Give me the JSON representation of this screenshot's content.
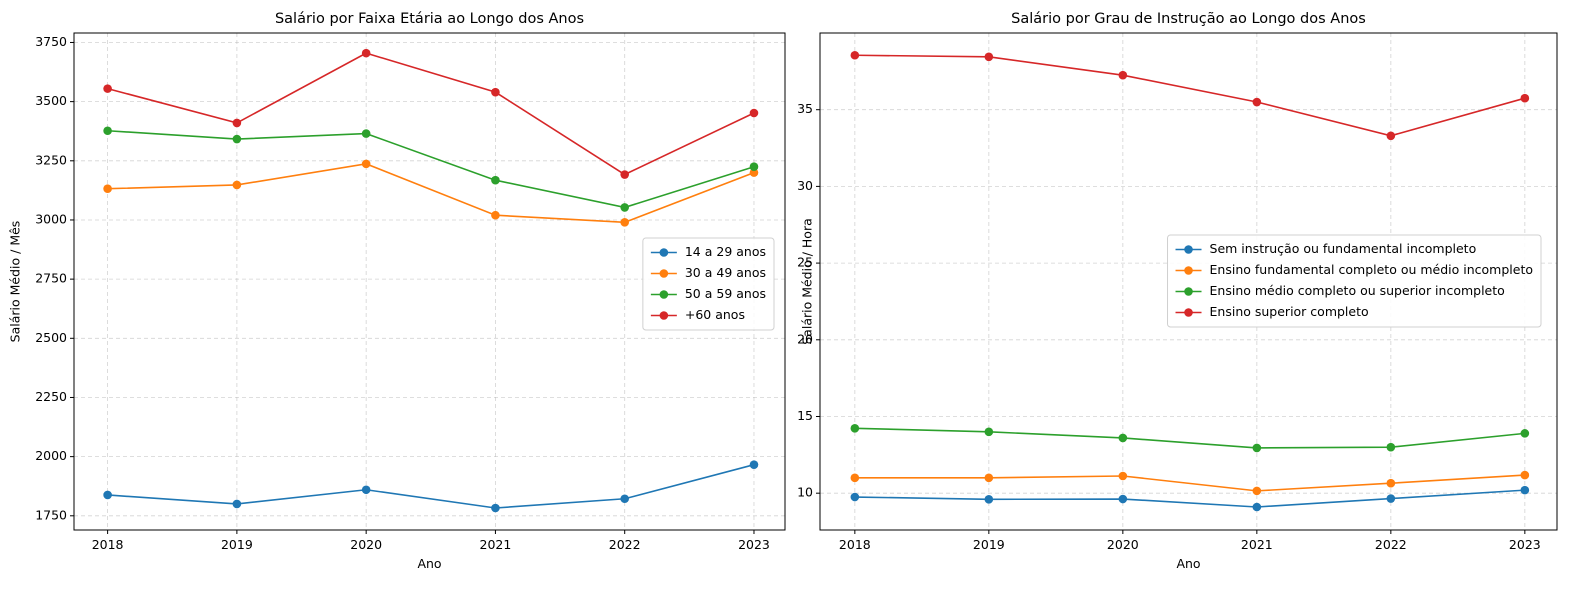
{
  "chart_data": [
    {
      "type": "line",
      "title": "Salário por Faixa Etária ao Longo dos Anos",
      "xlabel": "Ano",
      "ylabel": "Salário Médio / Mês",
      "x": [
        2018,
        2019,
        2020,
        2021,
        2022,
        2023
      ],
      "x_ticks": [
        "2018",
        "2019",
        "2020",
        "2021",
        "2022",
        "2023"
      ],
      "ylim": [
        1690,
        3790
      ],
      "y_ticks": [
        1750,
        2000,
        2250,
        2500,
        2750,
        3000,
        3250,
        3500,
        3750
      ],
      "y_tick_labels": [
        "1750",
        "2000",
        "2250",
        "2500",
        "2750",
        "3000",
        "3250",
        "3500",
        "3750"
      ],
      "grid": true,
      "legend_position": "center-right",
      "series": [
        {
          "name": "14 a 29 anos",
          "color": "#1f77b4",
          "values": [
            1838,
            1800,
            1860,
            1783,
            1822,
            1966
          ]
        },
        {
          "name": "30 a 49 anos",
          "color": "#ff7f0e",
          "values": [
            3132,
            3148,
            3237,
            3020,
            2990,
            3200
          ]
        },
        {
          "name": "50 a 59 anos",
          "color": "#2ca02c",
          "values": [
            3377,
            3342,
            3365,
            3168,
            3053,
            3225
          ]
        },
        {
          "name": "+60 anos",
          "color": "#d62728",
          "values": [
            3555,
            3410,
            3705,
            3540,
            3192,
            3452
          ]
        }
      ]
    },
    {
      "type": "line",
      "title": "Salário por Grau de Instrução ao Longo dos Anos",
      "xlabel": "Ano",
      "ylabel": "Salário Médio / Hora",
      "x": [
        2018,
        2019,
        2020,
        2021,
        2022,
        2023
      ],
      "x_ticks": [
        "2018",
        "2019",
        "2020",
        "2021",
        "2022",
        "2023"
      ],
      "ylim": [
        7.6,
        40.0
      ],
      "y_ticks": [
        10,
        15,
        20,
        25,
        30,
        35
      ],
      "y_tick_labels": [
        "10",
        "15",
        "20",
        "25",
        "30",
        "35"
      ],
      "grid": true,
      "legend_position": "center-right",
      "series": [
        {
          "name": "Sem instrução ou fundamental incompleto",
          "color": "#1f77b4",
          "values": [
            9.75,
            9.6,
            9.62,
            9.1,
            9.65,
            10.2
          ]
        },
        {
          "name": "Ensino fundamental completo ou médio incompleto",
          "color": "#ff7f0e",
          "values": [
            11.0,
            11.0,
            11.12,
            10.15,
            10.65,
            11.18
          ]
        },
        {
          "name": "Ensino médio completo ou superior incompleto",
          "color": "#2ca02c",
          "values": [
            14.23,
            14.0,
            13.6,
            12.95,
            13.0,
            13.9
          ]
        },
        {
          "name": "Ensino superior completo",
          "color": "#d62728",
          "values": [
            38.55,
            38.45,
            37.25,
            35.5,
            33.3,
            35.75
          ]
        }
      ]
    }
  ]
}
